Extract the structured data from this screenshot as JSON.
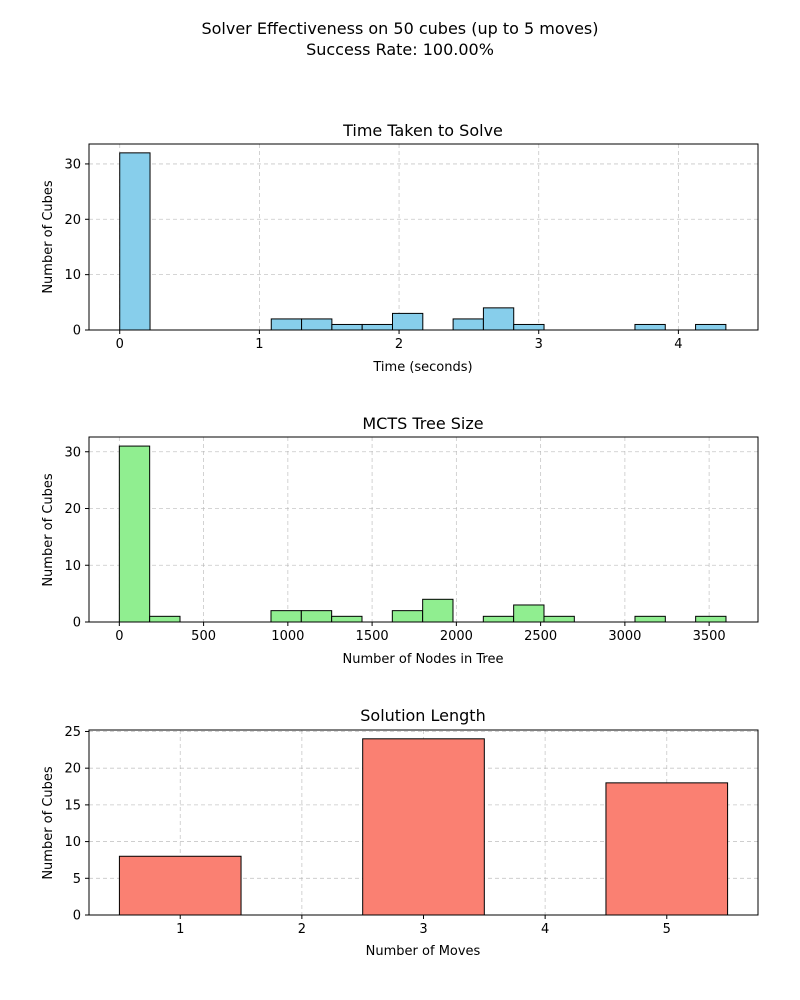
{
  "figure": {
    "suptitle_line1": "Solver Effectiveness on 50 cubes (up to 5 moves)",
    "suptitle_line2": "Success Rate: 100.00%"
  },
  "chart_data": [
    {
      "type": "bar",
      "title": "Time Taken to Solve",
      "xlabel": "Time (seconds)",
      "ylabel": "Number of Cubes",
      "color": "#87ceeb",
      "edge_color": "#000000",
      "grid": true,
      "xlim": [
        -0.22,
        4.57
      ],
      "ylim": [
        0,
        33.6
      ],
      "xticks": [
        0,
        1,
        2,
        3,
        4
      ],
      "yticks": [
        0,
        10,
        20,
        30
      ],
      "bin_edges": [
        0.0,
        0.217,
        0.434,
        0.651,
        0.868,
        1.085,
        1.302,
        1.519,
        1.736,
        1.953,
        2.17,
        2.387,
        2.604,
        2.821,
        3.038,
        3.255,
        3.472,
        3.689,
        3.906,
        4.123,
        4.34
      ],
      "counts": [
        32,
        0,
        0,
        0,
        0,
        2,
        2,
        1,
        1,
        3,
        0,
        2,
        4,
        1,
        0,
        0,
        0,
        1,
        0,
        1
      ]
    },
    {
      "type": "bar",
      "title": "MCTS Tree Size",
      "xlabel": "Number of Nodes in Tree",
      "ylabel": "Number of Cubes",
      "color": "#90ee90",
      "edge_color": "#000000",
      "grid": true,
      "xlim": [
        -180,
        3790
      ],
      "ylim": [
        0,
        32.6
      ],
      "xticks": [
        0,
        500,
        1000,
        1500,
        2000,
        2500,
        3000,
        3500
      ],
      "yticks": [
        0,
        10,
        20,
        30
      ],
      "bin_edges": [
        0,
        180,
        360,
        540,
        720,
        900,
        1080,
        1260,
        1440,
        1620,
        1800,
        1980,
        2160,
        2340,
        2520,
        2700,
        2880,
        3060,
        3240,
        3420,
        3600
      ],
      "counts": [
        31,
        1,
        0,
        0,
        0,
        2,
        2,
        1,
        0,
        2,
        4,
        0,
        1,
        3,
        1,
        0,
        0,
        1,
        0,
        1
      ]
    },
    {
      "type": "bar",
      "title": "Solution Length",
      "xlabel": "Number of Moves",
      "ylabel": "Number of Cubes",
      "color": "#fa8072",
      "edge_color": "#000000",
      "grid": true,
      "xlim": [
        0.25,
        5.75
      ],
      "ylim": [
        0,
        25.2
      ],
      "xticks": [
        1,
        2,
        3,
        4,
        5
      ],
      "yticks": [
        0,
        5,
        10,
        15,
        20,
        25
      ],
      "bin_edges": [
        0.5,
        1.5,
        2.5,
        3.5,
        4.5,
        5.5
      ],
      "counts": [
        8,
        0,
        24,
        0,
        18
      ]
    }
  ]
}
